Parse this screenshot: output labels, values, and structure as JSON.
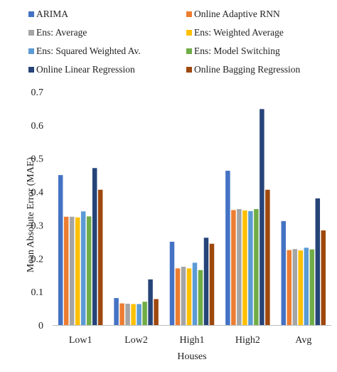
{
  "chart_data": {
    "type": "bar",
    "title": "",
    "xlabel": "Houses",
    "ylabel": "Mean Absolute Error (MAE)",
    "ylim": [
      0,
      0.7
    ],
    "yticks": [
      "0",
      "0.1",
      "0.2",
      "0.3",
      "0.4",
      "0.5",
      "0.6",
      "0.7"
    ],
    "grid": false,
    "legend_position": "top, two columns",
    "categories": [
      "Low1",
      "Low2",
      "High1",
      "High2",
      "Avg"
    ],
    "series": [
      {
        "name": "ARIMA",
        "color": "#4472C4",
        "values": [
          0.45,
          0.081,
          0.25,
          0.463,
          0.312
        ]
      },
      {
        "name": "Online Adaptive RNN",
        "color": "#ED7D31",
        "values": [
          0.325,
          0.065,
          0.17,
          0.345,
          0.225
        ]
      },
      {
        "name": "Ens: Average",
        "color": "#A5A5A5",
        "values": [
          0.325,
          0.064,
          0.175,
          0.348,
          0.228
        ]
      },
      {
        "name": "Ens: Weighted Average",
        "color": "#FFC000",
        "values": [
          0.323,
          0.063,
          0.17,
          0.344,
          0.224
        ]
      },
      {
        "name": "Ens: Squared Weighted Av.",
        "color": "#5B9BD5",
        "values": [
          0.341,
          0.063,
          0.187,
          0.342,
          0.232
        ]
      },
      {
        "name": "Ens: Model Switching",
        "color": "#70AD47",
        "values": [
          0.326,
          0.07,
          0.165,
          0.348,
          0.227
        ]
      },
      {
        "name": "Online Linear Regression",
        "color": "#264478",
        "values": [
          0.471,
          0.137,
          0.262,
          0.648,
          0.38
        ]
      },
      {
        "name": "Online Bagging Regression",
        "color": "#9E480E",
        "values": [
          0.406,
          0.078,
          0.244,
          0.406,
          0.284
        ]
      }
    ]
  }
}
